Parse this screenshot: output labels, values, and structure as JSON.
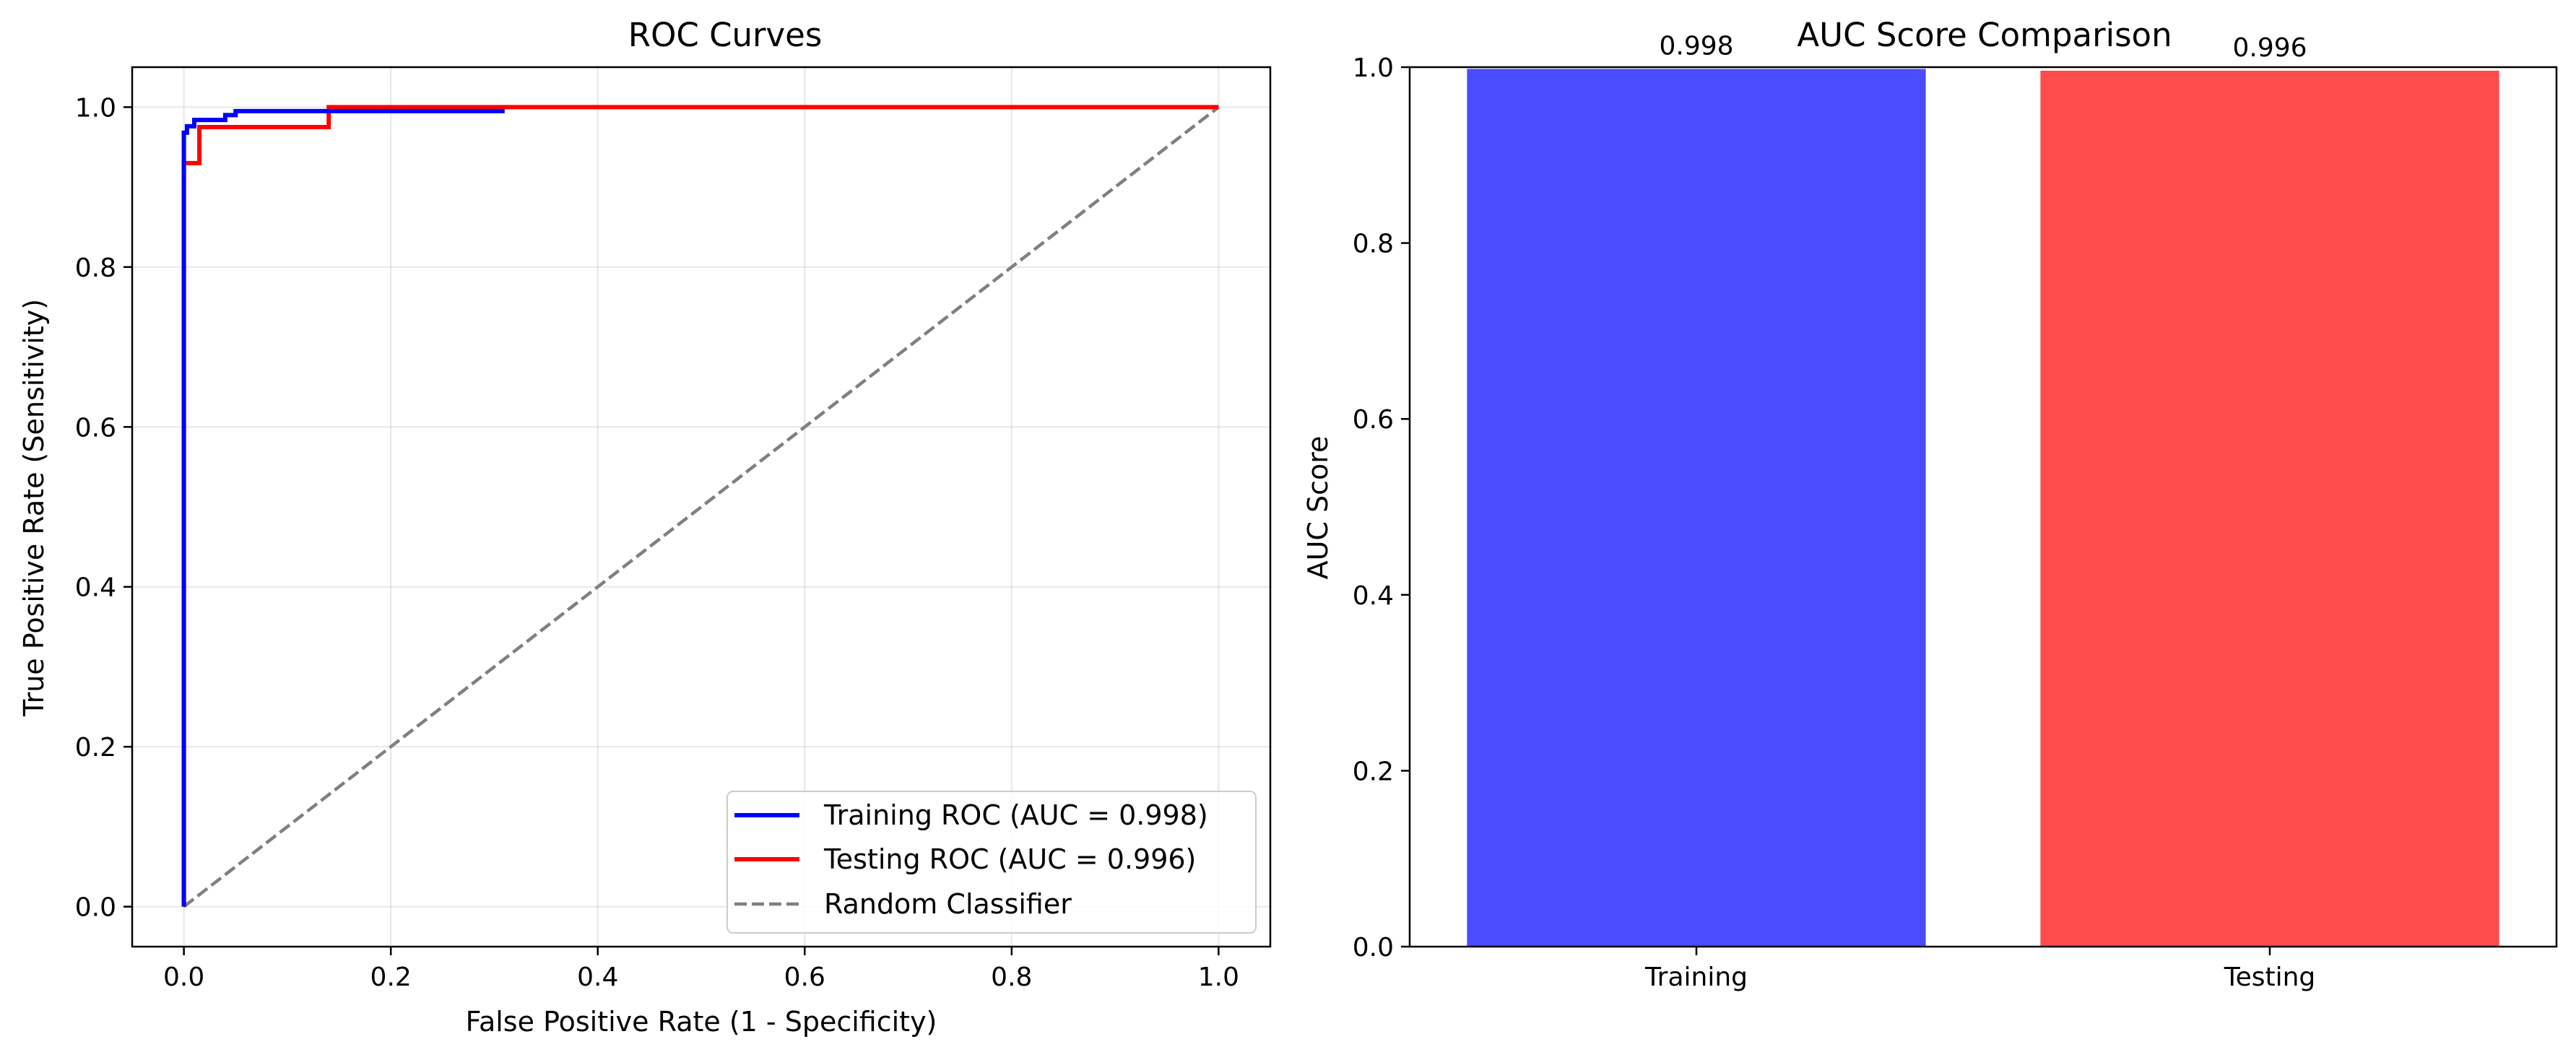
{
  "chart_data": [
    {
      "type": "line",
      "title": "ROC Curves",
      "xlabel": "False Positive Rate (1 - Specificity)",
      "ylabel": "True Positive Rate (Sensitivity)",
      "xlim": [
        -0.05,
        1.05
      ],
      "ylim": [
        -0.05,
        1.05
      ],
      "xticks": [
        0.0,
        0.2,
        0.4,
        0.6,
        0.8,
        1.0
      ],
      "yticks": [
        0.0,
        0.2,
        0.4,
        0.6,
        0.8,
        1.0
      ],
      "xtick_labels": [
        "0.0",
        "0.2",
        "0.4",
        "0.6",
        "0.8",
        "1.0"
      ],
      "ytick_labels": [
        "0.0",
        "0.2",
        "0.4",
        "0.6",
        "0.8",
        "1.0"
      ],
      "grid": true,
      "legend_position": "lower-right",
      "series": [
        {
          "name": "Training ROC (AUC = 0.998)",
          "color": "#0000ff",
          "style": "solid",
          "x": [
            0.0,
            0.0,
            0.003,
            0.003,
            0.01,
            0.01,
            0.04,
            0.04,
            0.05,
            0.05,
            0.31
          ],
          "y": [
            0.0,
            0.968,
            0.968,
            0.976,
            0.976,
            0.984,
            0.984,
            0.99,
            0.99,
            0.995,
            0.995
          ]
        },
        {
          "name": "Testing ROC (AUC = 0.996)",
          "color": "#ff0000",
          "style": "solid",
          "x": [
            0.0,
            0.0,
            0.015,
            0.015,
            0.14,
            0.14,
            1.0
          ],
          "y": [
            0.0,
            0.93,
            0.93,
            0.975,
            0.975,
            1.0,
            1.0
          ]
        },
        {
          "name": "Random Classifier",
          "color": "#808080",
          "style": "dashed",
          "x": [
            0.0,
            1.0
          ],
          "y": [
            0.0,
            1.0
          ]
        }
      ]
    },
    {
      "type": "bar",
      "title": "AUC Score Comparison",
      "xlabel": "",
      "ylabel": "AUC Score",
      "categories": [
        "Training",
        "Testing"
      ],
      "values": [
        0.998,
        0.996
      ],
      "value_labels": [
        "0.998",
        "0.996"
      ],
      "colors": [
        "#4b4bff",
        "#ff4b4b"
      ],
      "ylim": [
        0.0,
        1.0
      ],
      "yticks": [
        0.0,
        0.2,
        0.4,
        0.6,
        0.8,
        1.0
      ],
      "ytick_labels": [
        "0.0",
        "0.2",
        "0.4",
        "0.6",
        "0.8",
        "1.0"
      ],
      "grid": false
    }
  ]
}
